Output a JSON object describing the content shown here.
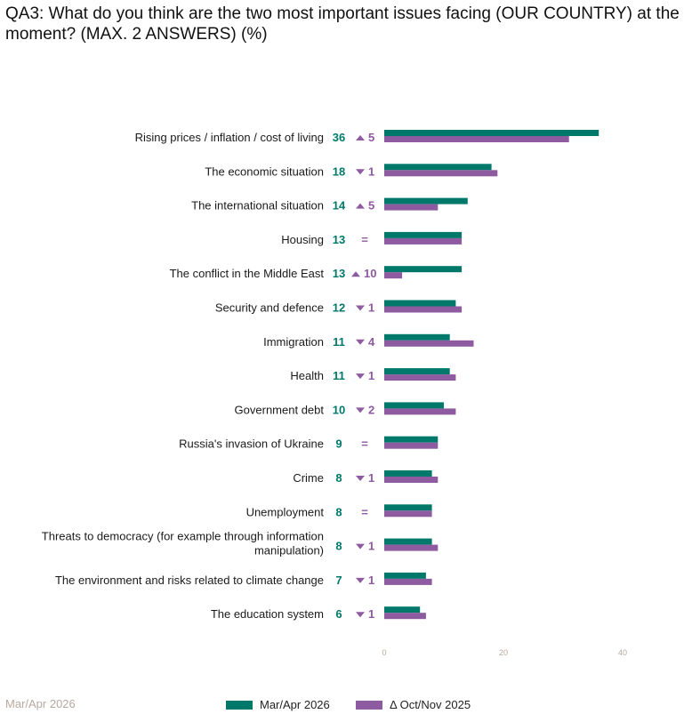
{
  "title": "QA3: What do you think are the two most important issues facing (OUR COUNTRY) at the moment? (MAX. 2 ANSWERS) (%)",
  "footer_label": "Mar/Apr 2026",
  "colors": {
    "current": "#00796b",
    "previous": "#8e5aa0",
    "teal_text": "#00796b",
    "purple_text": "#8e5aa0",
    "tick": "#b8a9a0"
  },
  "legend": [
    {
      "label": "Mar/Apr 2026",
      "color": "#00796b"
    },
    {
      "label": "Δ Oct/Nov 2025",
      "color": "#8e5aa0"
    }
  ],
  "chart_data": {
    "type": "bar",
    "orientation": "horizontal",
    "xlim": [
      0,
      40
    ],
    "xticks": [
      0,
      20,
      40
    ],
    "categories": [
      "Rising prices / inflation / cost of living",
      "The economic situation",
      "The international situation",
      "Housing",
      "The conflict in the Middle East",
      "Security and defence",
      "Immigration",
      "Health",
      "Government debt",
      "Russia's invasion of Ukraine",
      "Crime",
      "Unemployment",
      "Threats to democracy (for example through information manipulation)",
      "The environment and risks related to climate change",
      "The education system"
    ],
    "series": [
      {
        "name": "Mar/Apr 2026",
        "values": [
          36,
          18,
          14,
          13,
          13,
          12,
          11,
          11,
          10,
          9,
          8,
          8,
          8,
          7,
          6
        ]
      },
      {
        "name": "Δ Oct/Nov 2025",
        "values": [
          31,
          19,
          9,
          13,
          3,
          13,
          15,
          12,
          12,
          9,
          9,
          8,
          9,
          8,
          7
        ]
      }
    ],
    "changes": [
      {
        "dir": "up",
        "value": "5"
      },
      {
        "dir": "down",
        "value": "1"
      },
      {
        "dir": "up",
        "value": "5"
      },
      {
        "dir": "eq",
        "value": "="
      },
      {
        "dir": "up",
        "value": "10"
      },
      {
        "dir": "down",
        "value": "1"
      },
      {
        "dir": "down",
        "value": "4"
      },
      {
        "dir": "down",
        "value": "1"
      },
      {
        "dir": "down",
        "value": "2"
      },
      {
        "dir": "eq",
        "value": "="
      },
      {
        "dir": "down",
        "value": "1"
      },
      {
        "dir": "eq",
        "value": "="
      },
      {
        "dir": "down",
        "value": "1"
      },
      {
        "dir": "down",
        "value": "1"
      },
      {
        "dir": "down",
        "value": "1"
      }
    ]
  }
}
